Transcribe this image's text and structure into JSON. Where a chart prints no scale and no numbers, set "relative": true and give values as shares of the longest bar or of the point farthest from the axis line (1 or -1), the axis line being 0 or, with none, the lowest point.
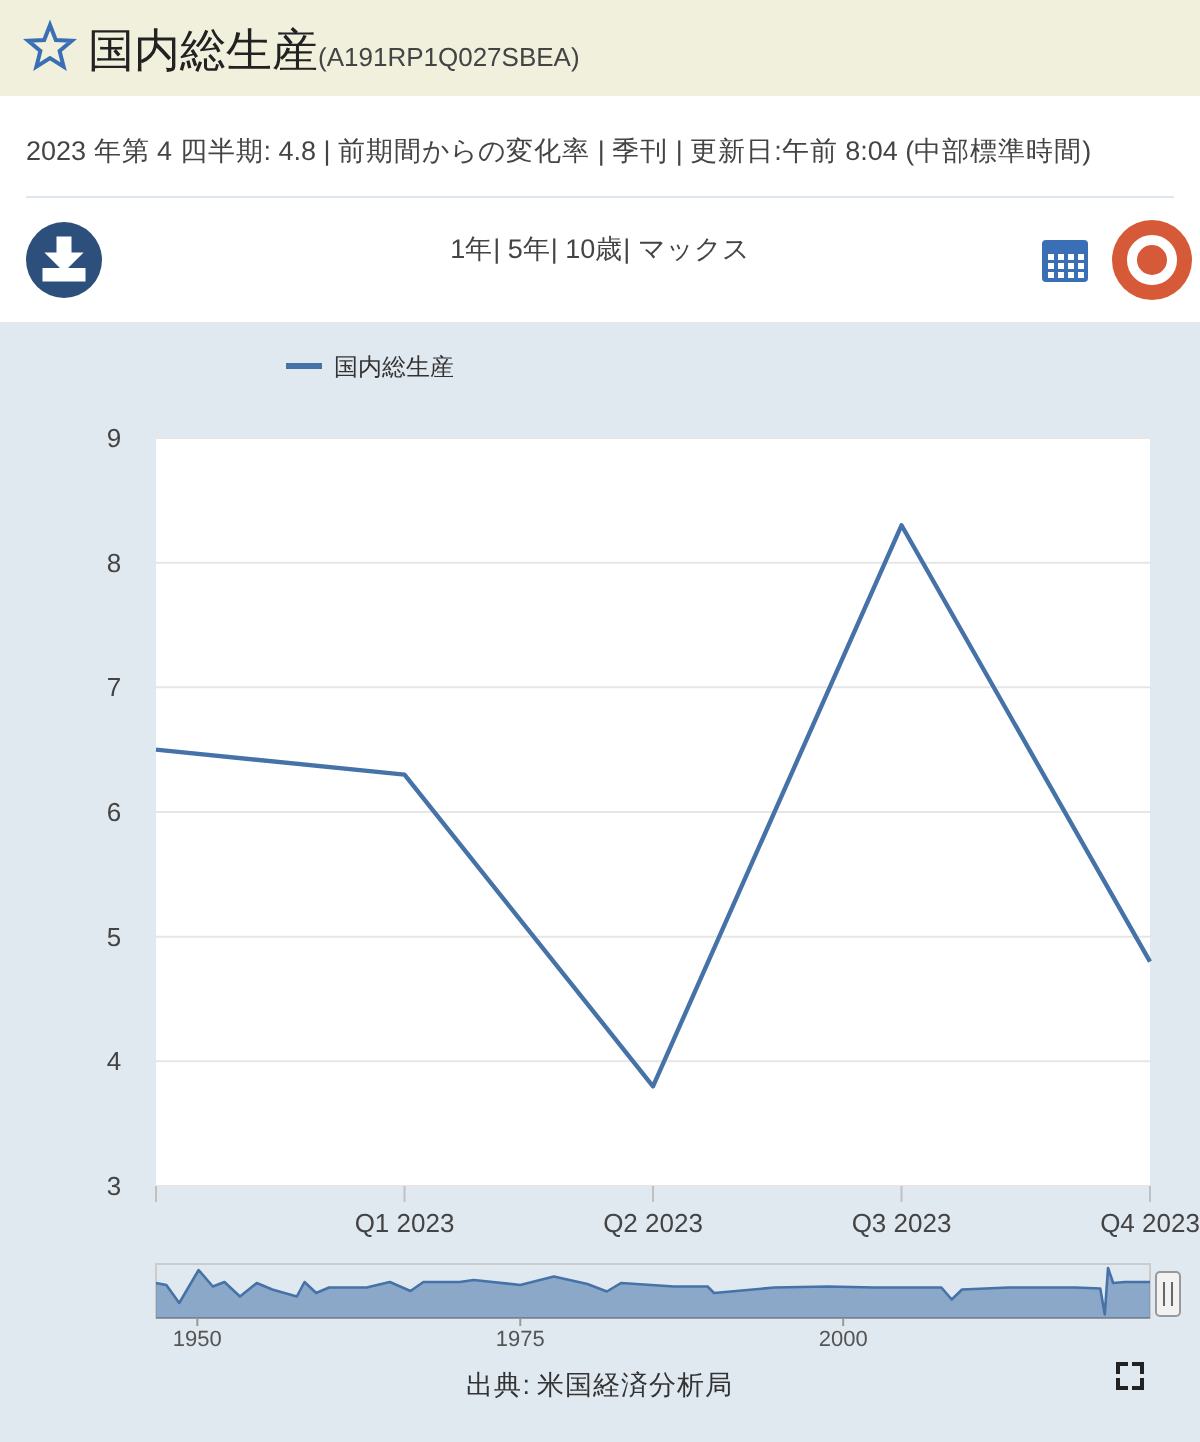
{
  "chart_data": [
    {
      "type": "line",
      "title": "国内総生産(A191RP1Q027SBEA)",
      "subtitle": "2023 年第 4 四半期: 4.8 | 前期間からの変化率 | 季刊 | 更新日:午前 8:04 (中部標準時間)",
      "annotations": [
        "1年| 5年| 10歳| マックス",
        "出典: 米国経済分析局"
      ],
      "categories": [
        null,
        "Q1 2023",
        "Q2 2023",
        "Q3 2023",
        "Q4 2023"
      ],
      "series": [
        {
          "name": "国内総生産",
          "color": "#4572a7",
          "values": [
            6.5,
            6.3,
            3.8,
            8.3,
            4.8
          ]
        }
      ],
      "ylim": [
        3,
        9
      ],
      "yticks": [
        3,
        4,
        5,
        6,
        7,
        8,
        9
      ],
      "grid": "y",
      "legend": "top left"
    },
    {
      "type": "area",
      "relative": true,
      "xlim": [
        1946.8,
        2023.75
      ],
      "xticks": [
        1950,
        1975,
        2000
      ],
      "x": [
        1946.8,
        1947.6,
        1948.6,
        1950.1,
        1951.2,
        1952.1,
        1953.3,
        1954.6,
        1955.8,
        1957.7,
        1958.3,
        1959.2,
        1960.2,
        1963.1,
        1964.9,
        1966.5,
        1967.5,
        1970.3,
        1971.4,
        1975.0,
        1977.6,
        1980.2,
        1981.7,
        1982.8,
        1986.9,
        1989.5,
        1990.0,
        1994.7,
        1998.8,
        2002.4,
        2007.6,
        2008.4,
        2009.2,
        2012.8,
        2018.0,
        2019.9,
        2020.25,
        2020.5,
        2020.9,
        2021.8,
        2023.75
      ],
      "series": [
        {
          "color": "#4572a7",
          "values": [
            0.7,
            0.66,
            0.3,
            0.96,
            0.63,
            0.72,
            0.43,
            0.7,
            0.57,
            0.43,
            0.72,
            0.5,
            0.61,
            0.61,
            0.72,
            0.54,
            0.72,
            0.72,
            0.76,
            0.66,
            0.83,
            0.68,
            0.53,
            0.7,
            0.63,
            0.63,
            0.5,
            0.61,
            0.63,
            0.61,
            0.61,
            0.37,
            0.57,
            0.61,
            0.61,
            0.59,
            0.07,
            1.0,
            0.7,
            0.72,
            0.72
          ]
        }
      ]
    }
  ]
}
